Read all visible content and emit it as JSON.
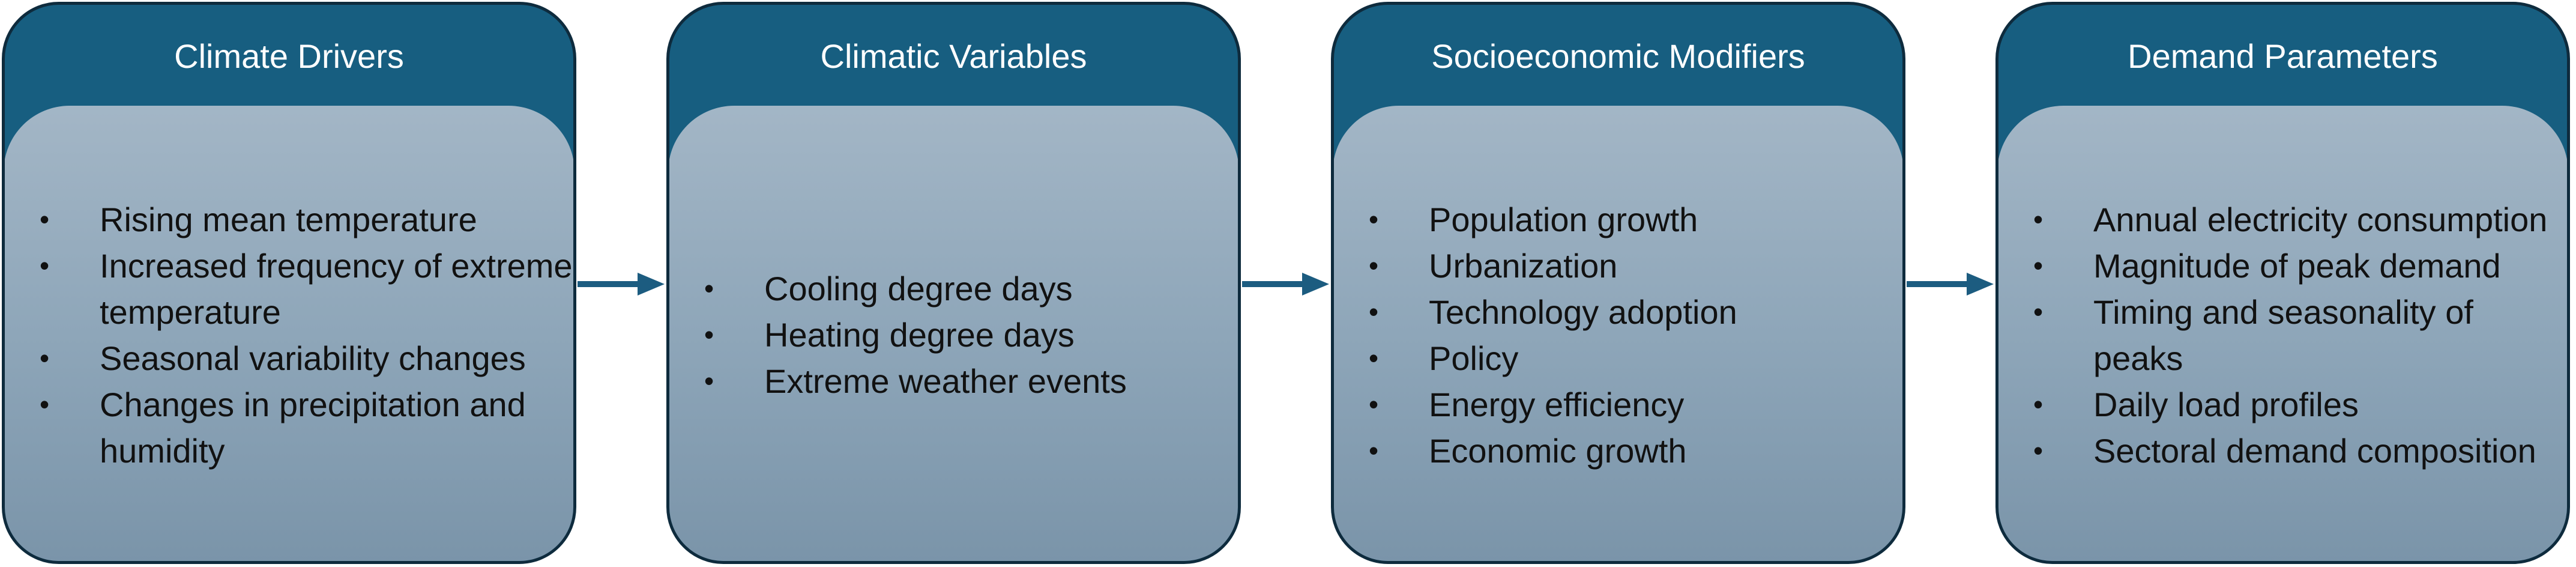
{
  "boxes": [
    {
      "title": "Climate Drivers",
      "items": [
        "Rising mean temperature",
        "Increased frequency of extreme temperature",
        "Seasonal variability changes",
        "Changes in precipitation and humidity"
      ]
    },
    {
      "title": "Climatic Variables",
      "items": [
        "Cooling degree days",
        "Heating degree days",
        "Extreme weather events"
      ]
    },
    {
      "title": "Socioeconomic Modifiers",
      "items": [
        "Population growth",
        "Urbanization",
        "Technology adoption",
        "Policy",
        "Energy efficiency",
        "Economic growth"
      ]
    },
    {
      "title": "Demand Parameters",
      "items": [
        "Annual electricity consumption",
        "Magnitude of peak demand",
        "Timing and seasonality of peaks",
        "Daily load profiles",
        "Sectoral demand composition"
      ]
    }
  ],
  "colors": {
    "header": "#175e80",
    "border": "#0e2b3d",
    "body_top": "#a3b6c6",
    "body_bottom": "#7a94a9",
    "arrow": "#1c5c80"
  }
}
